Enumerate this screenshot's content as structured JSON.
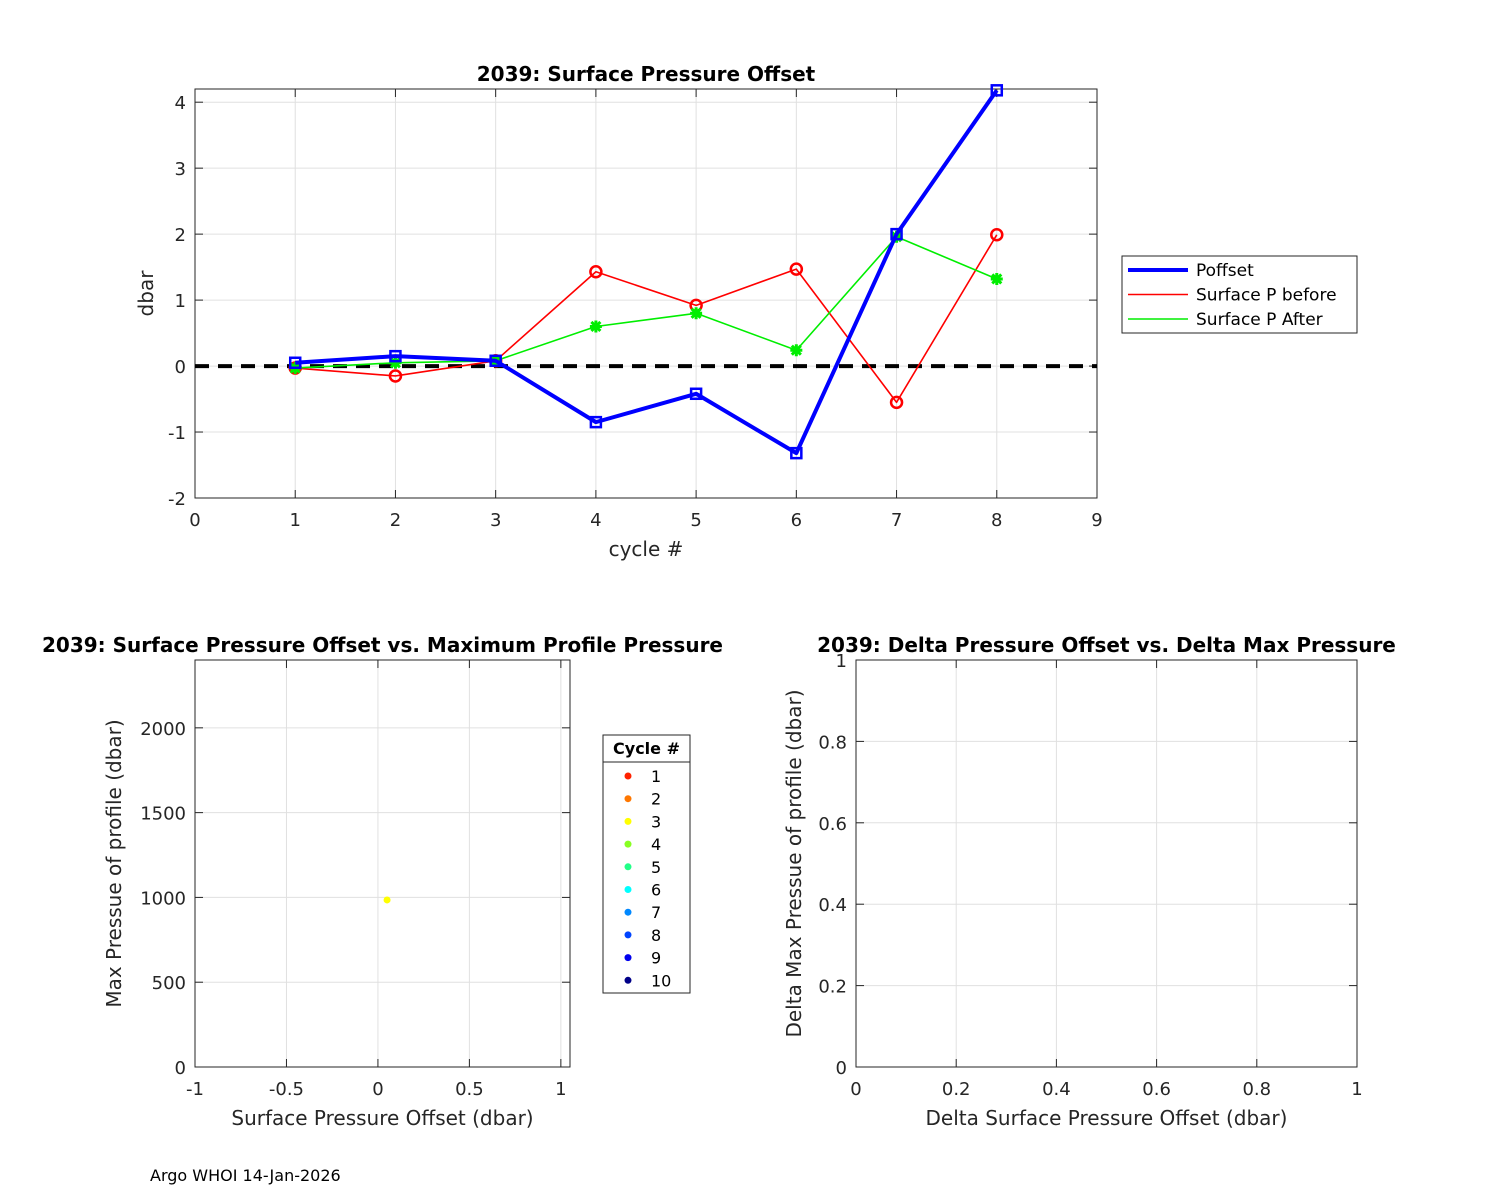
{
  "footer": "Argo WHOI 14-Jan-2026",
  "chart_data": [
    {
      "type": "line",
      "title": "2039: Surface Pressure Offset",
      "xlabel": "cycle #",
      "ylabel": "dbar",
      "xlim": [
        0,
        9
      ],
      "ylim": [
        -2,
        4.2
      ],
      "xticks": [
        0,
        1,
        2,
        3,
        4,
        5,
        6,
        7,
        8,
        9
      ],
      "yticks": [
        -2,
        -1,
        0,
        1,
        2,
        3,
        4
      ],
      "grid": true,
      "legend_position": "right",
      "zero_line": {
        "name": "zero reference",
        "y": 0,
        "style": "dashed",
        "color": "#000000"
      },
      "series": [
        {
          "name": "Poffset",
          "color": "#0000ff",
          "marker": "square",
          "x": [
            1,
            2,
            3,
            4,
            5,
            6,
            7,
            8
          ],
          "values": [
            0.05,
            0.15,
            0.08,
            -0.85,
            -0.42,
            -1.32,
            2.0,
            4.18
          ]
        },
        {
          "name": "Surface P before",
          "color": "#ff0000",
          "marker": "circle",
          "x": [
            1,
            2,
            3,
            4,
            5,
            6,
            7,
            8
          ],
          "values": [
            -0.03,
            -0.15,
            0.08,
            1.43,
            0.92,
            1.47,
            -0.55,
            1.99
          ]
        },
        {
          "name": "Surface P After",
          "color": "#00ee00",
          "marker": "asterisk",
          "x": [
            1,
            2,
            3,
            4,
            5,
            6,
            7,
            8
          ],
          "values": [
            -0.03,
            0.05,
            0.08,
            0.6,
            0.8,
            0.24,
            1.96,
            1.32
          ]
        }
      ]
    },
    {
      "type": "scatter",
      "title": "2039: Surface Pressure Offset vs. Maximum Profile Pressure",
      "xlabel": "Surface Pressure Offset (dbar)",
      "ylabel": "Max Pressue of profile (dbar)",
      "xlim": [
        -1,
        1.05
      ],
      "ylim": [
        0,
        2400
      ],
      "y_reversed": true,
      "xticks": [
        -1,
        -0.5,
        0,
        0.5,
        1
      ],
      "ytick_values": [
        0,
        500,
        1000,
        1500,
        2000
      ],
      "yticks": [
        "0",
        "500",
        "1000",
        "1500",
        "2000"
      ],
      "xtick_labels": [
        "-1",
        "-0.5",
        "0",
        "0.5",
        "1"
      ],
      "grid": true,
      "legend_title": "Cycle #",
      "legend": [
        {
          "label": "1",
          "color": "#ff2200"
        },
        {
          "label": "2",
          "color": "#ff7700"
        },
        {
          "label": "3",
          "color": "#ffff00"
        },
        {
          "label": "4",
          "color": "#88ff22"
        },
        {
          "label": "5",
          "color": "#22ff88"
        },
        {
          "label": "6",
          "color": "#00ffff"
        },
        {
          "label": "7",
          "color": "#0088ff"
        },
        {
          "label": "8",
          "color": "#0044ff"
        },
        {
          "label": "9",
          "color": "#0000ee"
        },
        {
          "label": "10",
          "color": "#000088"
        }
      ],
      "points": [
        {
          "x": 0.05,
          "y": 985,
          "cycle": "3",
          "color": "#ffff00"
        }
      ]
    },
    {
      "type": "scatter",
      "title": "2039: Delta Pressure Offset vs. Delta Max Pressure",
      "xlabel": "Delta Surface Pressure Offset (dbar)",
      "ylabel": "Delta Max Pressue of profile (dbar)",
      "xlim": [
        0,
        1
      ],
      "ylim": [
        0,
        1
      ],
      "xticks": [
        0,
        0.2,
        0.4,
        0.6,
        0.8,
        1
      ],
      "yticks": [
        0,
        0.2,
        0.4,
        0.6,
        0.8,
        1
      ],
      "xtick_labels": [
        "0",
        "0.2",
        "0.4",
        "0.6",
        "0.8",
        "1"
      ],
      "ytick_labels": [
        "0",
        "0.2",
        "0.4",
        "0.6",
        "0.8",
        "1"
      ],
      "grid": true,
      "points": []
    }
  ]
}
